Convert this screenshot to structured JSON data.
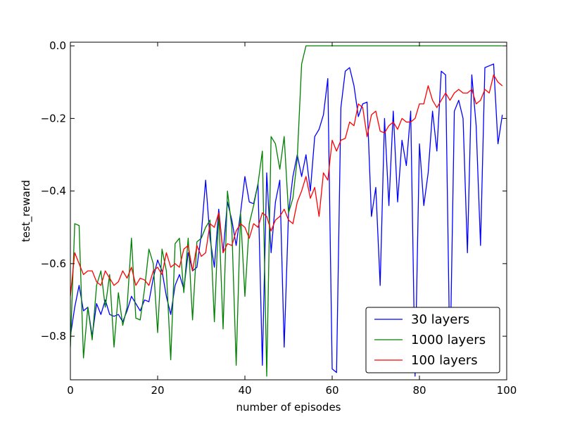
{
  "chart_data": {
    "type": "line",
    "title": "",
    "xlabel": "number of episodes",
    "ylabel": "test_reward",
    "xlim": [
      0,
      100
    ],
    "ylim": [
      -0.92,
      0.01
    ],
    "xticks": [
      0,
      20,
      40,
      60,
      80,
      100
    ],
    "xtick_labels": [
      "0",
      "20",
      "40",
      "60",
      "80",
      "100"
    ],
    "yticks": [
      0.0,
      -0.2,
      -0.4,
      -0.6,
      -0.8
    ],
    "ytick_labels": [
      "0.0",
      "−0.2",
      "−0.4",
      "−0.6",
      "−0.8"
    ],
    "legend_position": "lower-right",
    "grid": false,
    "x": [
      0,
      1,
      2,
      3,
      4,
      5,
      6,
      7,
      8,
      9,
      10,
      11,
      12,
      13,
      14,
      15,
      16,
      17,
      18,
      19,
      20,
      21,
      22,
      23,
      24,
      25,
      26,
      27,
      28,
      29,
      30,
      31,
      32,
      33,
      34,
      35,
      36,
      37,
      38,
      39,
      40,
      41,
      42,
      43,
      44,
      45,
      46,
      47,
      48,
      49,
      50,
      51,
      52,
      53,
      54,
      55,
      56,
      57,
      58,
      59,
      60,
      61,
      62,
      63,
      64,
      65,
      66,
      67,
      68,
      69,
      70,
      71,
      72,
      73,
      74,
      75,
      76,
      77,
      78,
      79,
      80,
      81,
      82,
      83,
      84,
      85,
      86,
      87,
      88,
      89,
      90,
      91,
      92,
      93,
      94,
      95,
      96,
      97,
      98,
      99
    ],
    "series": [
      {
        "name": "30 layers",
        "color": "#0000ff",
        "values": [
          -0.8,
          -0.72,
          -0.66,
          -0.73,
          -0.72,
          -0.8,
          -0.71,
          -0.74,
          -0.7,
          -0.74,
          -0.745,
          -0.74,
          -0.76,
          -0.73,
          -0.69,
          -0.71,
          -0.73,
          -0.7,
          -0.705,
          -0.64,
          -0.59,
          -0.62,
          -0.69,
          -0.74,
          -0.66,
          -0.63,
          -0.67,
          -0.57,
          -0.62,
          -0.61,
          -0.52,
          -0.37,
          -0.53,
          -0.61,
          -0.45,
          -0.57,
          -0.43,
          -0.48,
          -0.55,
          -0.46,
          -0.36,
          -0.43,
          -0.435,
          -0.38,
          -0.88,
          -0.35,
          -0.57,
          -0.43,
          -0.37,
          -0.83,
          -0.46,
          -0.36,
          -0.3,
          -0.36,
          -0.3,
          -0.4,
          -0.25,
          -0.23,
          -0.19,
          -0.09,
          -0.89,
          -0.9,
          -0.17,
          -0.07,
          -0.06,
          -0.11,
          -0.195,
          -0.16,
          -0.155,
          -0.47,
          -0.39,
          -0.66,
          -0.2,
          -0.44,
          -0.18,
          -0.43,
          -0.26,
          -0.33,
          -0.18,
          -0.91,
          -0.27,
          -0.44,
          -0.35,
          -0.18,
          -0.29,
          -0.07,
          -0.08,
          -0.89,
          -0.18,
          -0.15,
          -0.2,
          -0.57,
          -0.08,
          -0.22,
          -0.55,
          -0.06,
          -0.055,
          -0.05,
          -0.27,
          -0.19
        ]
      },
      {
        "name": "1000 layers",
        "color": "#008000",
        "values": [
          -0.83,
          -0.49,
          -0.495,
          -0.86,
          -0.72,
          -0.81,
          -0.66,
          -0.62,
          -0.72,
          -0.63,
          -0.83,
          -0.68,
          -0.77,
          -0.72,
          -0.53,
          -0.75,
          -0.755,
          -0.67,
          -0.56,
          -0.6,
          -0.79,
          -0.56,
          -0.62,
          -0.865,
          -0.545,
          -0.53,
          -0.68,
          -0.53,
          -0.755,
          -0.54,
          -0.53,
          -0.5,
          -0.48,
          -0.76,
          -0.46,
          -0.78,
          -0.4,
          -0.5,
          -0.88,
          -0.46,
          -0.69,
          -0.49,
          -0.44,
          -0.38,
          -0.29,
          -0.91,
          -0.25,
          -0.27,
          -0.34,
          -0.25,
          -0.46,
          -0.42,
          -0.31,
          -0.05,
          0.0,
          0.0,
          0.0,
          0.0,
          0.0,
          0.0,
          0.0,
          0.0,
          0.0,
          0.0,
          0.0,
          0.0,
          0.0,
          0.0,
          0.0,
          0.0,
          0.0,
          0.0,
          0.0,
          0.0,
          0.0,
          0.0,
          0.0,
          0.0,
          0.0,
          0.0,
          0.0,
          0.0,
          0.0,
          0.0,
          0.0,
          0.0,
          0.0,
          0.0,
          0.0,
          0.0,
          0.0,
          0.0,
          0.0,
          0.0,
          0.0,
          0.0,
          0.0,
          0.0,
          0.0,
          0.0
        ]
      },
      {
        "name": "100 layers",
        "color": "#ff0000",
        "values": [
          -0.69,
          -0.57,
          -0.6,
          -0.63,
          -0.62,
          -0.62,
          -0.65,
          -0.66,
          -0.62,
          -0.64,
          -0.66,
          -0.65,
          -0.62,
          -0.64,
          -0.61,
          -0.66,
          -0.64,
          -0.645,
          -0.66,
          -0.62,
          -0.61,
          -0.63,
          -0.57,
          -0.61,
          -0.6,
          -0.61,
          -0.56,
          -0.55,
          -0.62,
          -0.55,
          -0.58,
          -0.57,
          -0.49,
          -0.5,
          -0.46,
          -0.57,
          -0.545,
          -0.55,
          -0.51,
          -0.49,
          -0.5,
          -0.53,
          -0.49,
          -0.5,
          -0.46,
          -0.47,
          -0.51,
          -0.48,
          -0.47,
          -0.45,
          -0.48,
          -0.49,
          -0.43,
          -0.4,
          -0.36,
          -0.42,
          -0.39,
          -0.47,
          -0.35,
          -0.37,
          -0.26,
          -0.29,
          -0.26,
          -0.255,
          -0.21,
          -0.22,
          -0.16,
          -0.17,
          -0.25,
          -0.19,
          -0.18,
          -0.235,
          -0.24,
          -0.22,
          -0.21,
          -0.23,
          -0.2,
          -0.21,
          -0.21,
          -0.2,
          -0.16,
          -0.16,
          -0.11,
          -0.15,
          -0.17,
          -0.15,
          -0.13,
          -0.15,
          -0.13,
          -0.12,
          -0.13,
          -0.13,
          -0.12,
          -0.16,
          -0.15,
          -0.12,
          -0.13,
          -0.08,
          -0.1,
          -0.11
        ]
      }
    ]
  }
}
